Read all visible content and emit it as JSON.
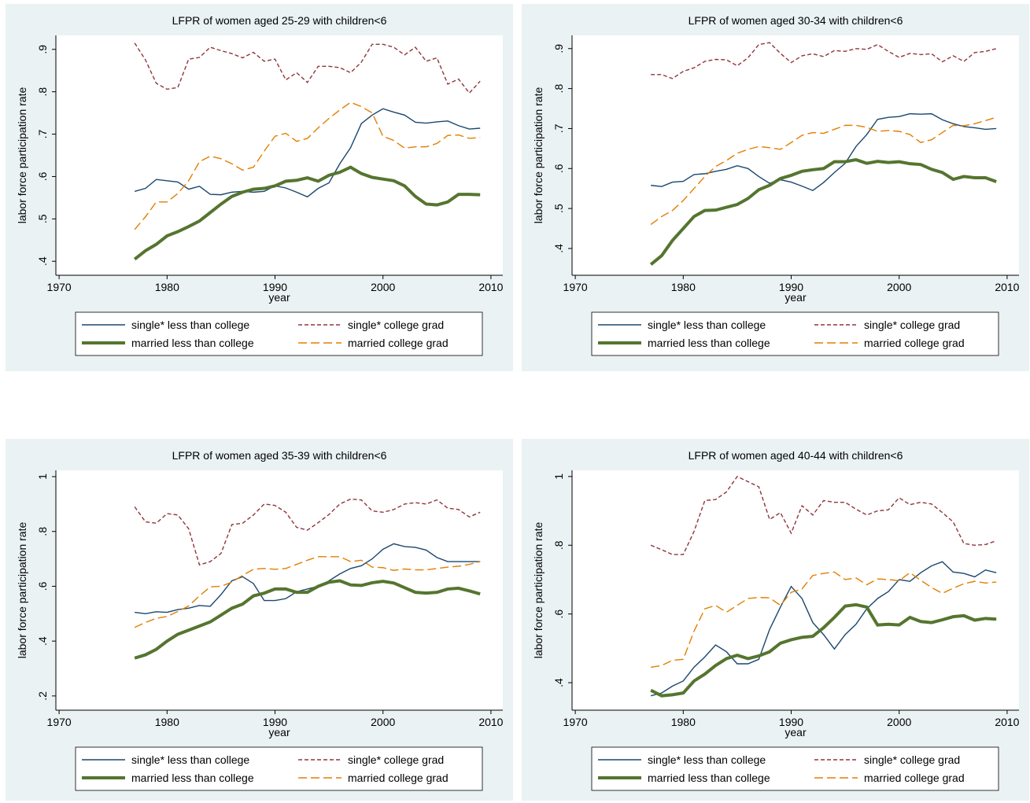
{
  "chart_data": [
    {
      "type": "line",
      "title": "LFPR of women aged 25-29 with children<6",
      "x_label": "year",
      "y_label": "labor force participation rate",
      "x": [
        1977,
        1978,
        1979,
        1980,
        1981,
        1982,
        1983,
        1984,
        1985,
        1986,
        1987,
        1988,
        1989,
        1990,
        1991,
        1992,
        1993,
        1994,
        1995,
        1996,
        1997,
        1998,
        1999,
        2000,
        2001,
        2002,
        2003,
        2004,
        2005,
        2006,
        2007,
        2008,
        2009
      ],
      "xlim": [
        1969.7,
        2011.1
      ],
      "xticks": [
        1970,
        1980,
        1990,
        2000,
        2010
      ],
      "ylim": [
        0.367,
        0.933
      ],
      "yticks": [
        {
          "value": 0.4,
          "label": ".4"
        },
        {
          "value": 0.5,
          "label": ".5"
        },
        {
          "value": 0.6,
          "label": ".6"
        },
        {
          "value": 0.7,
          "label": ".7"
        },
        {
          "value": 0.8,
          "label": ".8"
        },
        {
          "value": 0.9,
          "label": ".9"
        }
      ],
      "legend": "bottom",
      "series": [
        {
          "name": "single* less than college",
          "color": "#1a476f",
          "line_style": "solid",
          "line_width": 1.4,
          "values": [
            0.565,
            0.572,
            0.593,
            0.59,
            0.587,
            0.57,
            0.577,
            0.558,
            0.557,
            0.563,
            0.565,
            0.563,
            0.565,
            0.578,
            0.573,
            0.563,
            0.552,
            0.572,
            0.585,
            0.63,
            0.668,
            0.725,
            0.745,
            0.76,
            0.752,
            0.745,
            0.728,
            0.726,
            0.729,
            0.731,
            0.72,
            0.712,
            0.714
          ]
        },
        {
          "name": "single* college grad",
          "color": "#90353b",
          "line_style": "dash",
          "line_width": 1.4,
          "values": [
            0.915,
            0.875,
            0.82,
            0.806,
            0.81,
            0.877,
            0.881,
            0.905,
            0.897,
            0.89,
            0.88,
            0.893,
            0.872,
            0.877,
            0.828,
            0.845,
            0.822,
            0.86,
            0.86,
            0.857,
            0.845,
            0.87,
            0.912,
            0.912,
            0.905,
            0.887,
            0.905,
            0.872,
            0.88,
            0.818,
            0.83,
            0.797,
            0.825
          ]
        },
        {
          "name": "married less than college",
          "color": "#55752f",
          "line_style": "solid",
          "line_width": 4,
          "values": [
            0.405,
            0.425,
            0.44,
            0.46,
            0.47,
            0.482,
            0.495,
            0.515,
            0.535,
            0.553,
            0.563,
            0.57,
            0.572,
            0.578,
            0.589,
            0.591,
            0.597,
            0.589,
            0.603,
            0.61,
            0.622,
            0.607,
            0.598,
            0.594,
            0.59,
            0.578,
            0.553,
            0.535,
            0.533,
            0.54,
            0.558,
            0.558,
            0.557
          ]
        },
        {
          "name": "married college grad",
          "color": "#e37e00",
          "line_style": "longdash",
          "line_width": 1.4,
          "values": [
            0.475,
            0.505,
            0.54,
            0.54,
            0.56,
            0.59,
            0.635,
            0.648,
            0.642,
            0.63,
            0.615,
            0.622,
            0.66,
            0.695,
            0.702,
            0.683,
            0.69,
            0.715,
            0.737,
            0.757,
            0.775,
            0.765,
            0.75,
            0.695,
            0.685,
            0.667,
            0.67,
            0.67,
            0.678,
            0.697,
            0.698,
            0.69,
            0.692
          ]
        }
      ]
    },
    {
      "type": "line",
      "title": "LFPR of women aged 30-34 with children<6",
      "x_label": "year",
      "y_label": "labor force participation rate",
      "x": [
        1977,
        1978,
        1979,
        1980,
        1981,
        1982,
        1983,
        1984,
        1985,
        1986,
        1987,
        1988,
        1989,
        1990,
        1991,
        1992,
        1993,
        1994,
        1995,
        1996,
        1997,
        1998,
        1999,
        2000,
        2001,
        2002,
        2003,
        2004,
        2005,
        2006,
        2007,
        2008,
        2009
      ],
      "xlim": [
        1969.7,
        2011.1
      ],
      "xticks": [
        1970,
        1980,
        1990,
        2000,
        2010
      ],
      "ylim": [
        0.333,
        0.933
      ],
      "yticks": [
        {
          "value": 0.4,
          "label": ".4"
        },
        {
          "value": 0.5,
          "label": ".5"
        },
        {
          "value": 0.6,
          "label": ".6"
        },
        {
          "value": 0.7,
          "label": ".7"
        },
        {
          "value": 0.8,
          "label": ".8"
        },
        {
          "value": 0.9,
          "label": ".9"
        }
      ],
      "legend": "bottom",
      "series": [
        {
          "name": "single* less than college",
          "color": "#1a476f",
          "line_style": "solid",
          "line_width": 1.4,
          "values": [
            0.558,
            0.555,
            0.566,
            0.568,
            0.585,
            0.587,
            0.593,
            0.598,
            0.607,
            0.6,
            0.58,
            0.563,
            0.572,
            0.566,
            0.556,
            0.545,
            0.565,
            0.59,
            0.613,
            0.655,
            0.685,
            0.723,
            0.728,
            0.73,
            0.737,
            0.736,
            0.737,
            0.722,
            0.712,
            0.705,
            0.702,
            0.698,
            0.7
          ]
        },
        {
          "name": "single* college grad",
          "color": "#90353b",
          "line_style": "dash",
          "line_width": 1.4,
          "values": [
            0.835,
            0.835,
            0.825,
            0.843,
            0.852,
            0.868,
            0.873,
            0.872,
            0.857,
            0.877,
            0.91,
            0.915,
            0.888,
            0.865,
            0.882,
            0.887,
            0.88,
            0.895,
            0.893,
            0.9,
            0.898,
            0.91,
            0.893,
            0.878,
            0.888,
            0.885,
            0.887,
            0.867,
            0.882,
            0.868,
            0.89,
            0.893,
            0.9
          ]
        },
        {
          "name": "married less than college",
          "color": "#55752f",
          "line_style": "solid",
          "line_width": 4,
          "values": [
            0.36,
            0.382,
            0.42,
            0.45,
            0.48,
            0.495,
            0.496,
            0.503,
            0.51,
            0.525,
            0.547,
            0.558,
            0.575,
            0.583,
            0.593,
            0.597,
            0.6,
            0.617,
            0.617,
            0.622,
            0.613,
            0.618,
            0.615,
            0.617,
            0.612,
            0.61,
            0.598,
            0.59,
            0.573,
            0.58,
            0.577,
            0.577,
            0.567
          ]
        },
        {
          "name": "married college grad",
          "color": "#e37e00",
          "line_style": "longdash",
          "line_width": 1.4,
          "values": [
            0.46,
            0.48,
            0.495,
            0.52,
            0.55,
            0.58,
            0.605,
            0.62,
            0.638,
            0.648,
            0.655,
            0.652,
            0.648,
            0.665,
            0.683,
            0.69,
            0.688,
            0.698,
            0.708,
            0.708,
            0.703,
            0.693,
            0.695,
            0.693,
            0.685,
            0.665,
            0.672,
            0.69,
            0.708,
            0.707,
            0.712,
            0.72,
            0.728
          ]
        }
      ]
    },
    {
      "type": "line",
      "title": "LFPR of women aged 35-39 with children<6",
      "x_label": "year",
      "y_label": "labor force participation rate",
      "x": [
        1977,
        1978,
        1979,
        1980,
        1981,
        1982,
        1983,
        1984,
        1985,
        1986,
        1987,
        1988,
        1989,
        1990,
        1991,
        1992,
        1993,
        1994,
        1995,
        1996,
        1997,
        1998,
        1999,
        2000,
        2001,
        2002,
        2003,
        2004,
        2005,
        2006,
        2007,
        2008,
        2009
      ],
      "xlim": [
        1969.7,
        2011.1
      ],
      "xticks": [
        1970,
        1980,
        1990,
        2000,
        2010
      ],
      "ylim": [
        0.148,
        1.023
      ],
      "yticks": [
        {
          "value": 0.2,
          "label": ".2"
        },
        {
          "value": 0.4,
          "label": ".4"
        },
        {
          "value": 0.6,
          "label": ".6"
        },
        {
          "value": 0.8,
          "label": ".8"
        },
        1
      ],
      "legend": "bottom",
      "series": [
        {
          "name": "single* less than college",
          "color": "#1a476f",
          "line_style": "solid",
          "line_width": 1.4,
          "values": [
            0.505,
            0.5,
            0.507,
            0.505,
            0.515,
            0.52,
            0.53,
            0.527,
            0.57,
            0.62,
            0.635,
            0.61,
            0.548,
            0.548,
            0.555,
            0.58,
            0.59,
            0.6,
            0.62,
            0.645,
            0.665,
            0.675,
            0.7,
            0.735,
            0.755,
            0.745,
            0.742,
            0.732,
            0.705,
            0.69,
            0.69,
            0.69,
            0.69
          ]
        },
        {
          "name": "single* college grad",
          "color": "#90353b",
          "line_style": "dash",
          "line_width": 1.4,
          "values": [
            0.89,
            0.835,
            0.83,
            0.865,
            0.86,
            0.81,
            0.678,
            0.69,
            0.72,
            0.825,
            0.83,
            0.86,
            0.9,
            0.895,
            0.87,
            0.815,
            0.805,
            0.832,
            0.862,
            0.9,
            0.918,
            0.915,
            0.875,
            0.87,
            0.88,
            0.9,
            0.905,
            0.9,
            0.915,
            0.885,
            0.88,
            0.853,
            0.87
          ]
        },
        {
          "name": "married less than college",
          "color": "#55752f",
          "line_style": "solid",
          "line_width": 4,
          "values": [
            0.338,
            0.35,
            0.37,
            0.4,
            0.425,
            0.44,
            0.455,
            0.47,
            0.495,
            0.52,
            0.535,
            0.565,
            0.575,
            0.59,
            0.59,
            0.578,
            0.578,
            0.6,
            0.615,
            0.62,
            0.605,
            0.603,
            0.613,
            0.618,
            0.612,
            0.595,
            0.578,
            0.575,
            0.578,
            0.59,
            0.593,
            0.583,
            0.572
          ]
        },
        {
          "name": "married college grad",
          "color": "#e37e00",
          "line_style": "longdash",
          "line_width": 1.4,
          "values": [
            0.45,
            0.468,
            0.483,
            0.49,
            0.508,
            0.528,
            0.565,
            0.598,
            0.6,
            0.615,
            0.64,
            0.662,
            0.665,
            0.662,
            0.665,
            0.68,
            0.695,
            0.708,
            0.708,
            0.708,
            0.69,
            0.695,
            0.67,
            0.668,
            0.658,
            0.663,
            0.66,
            0.66,
            0.665,
            0.67,
            0.673,
            0.68,
            0.69
          ]
        }
      ]
    },
    {
      "type": "line",
      "title": "LFPR of women aged 40-44 with children<6",
      "x_label": "year",
      "y_label": "labor force participation rate",
      "x": [
        1977,
        1978,
        1979,
        1980,
        1981,
        1982,
        1983,
        1984,
        1985,
        1986,
        1987,
        1988,
        1989,
        1990,
        1991,
        1992,
        1993,
        1994,
        1995,
        1996,
        1997,
        1998,
        1999,
        2000,
        2001,
        2002,
        2003,
        2004,
        2005,
        2006,
        2007,
        2008,
        2009
      ],
      "xlim": [
        1969.7,
        2011.1
      ],
      "xticks": [
        1970,
        1980,
        1990,
        2000,
        2010
      ],
      "ylim": [
        0.32,
        1.018
      ],
      "yticks": [
        {
          "value": 0.4,
          "label": ".4"
        },
        {
          "value": 0.6,
          "label": ".6"
        },
        {
          "value": 0.8,
          "label": ".8"
        },
        1
      ],
      "legend": "bottom",
      "series": [
        {
          "name": "single* less than college",
          "color": "#1a476f",
          "line_style": "solid",
          "line_width": 1.4,
          "values": [
            0.362,
            0.37,
            0.39,
            0.405,
            0.445,
            0.475,
            0.51,
            0.49,
            0.455,
            0.455,
            0.468,
            0.555,
            0.62,
            0.68,
            0.645,
            0.575,
            0.54,
            0.498,
            0.54,
            0.57,
            0.615,
            0.645,
            0.665,
            0.7,
            0.695,
            0.72,
            0.74,
            0.752,
            0.722,
            0.718,
            0.708,
            0.728,
            0.72
          ]
        },
        {
          "name": "single* college grad",
          "color": "#90353b",
          "line_style": "dash",
          "line_width": 1.4,
          "values": [
            0.8,
            0.787,
            0.773,
            0.773,
            0.84,
            0.93,
            0.933,
            0.955,
            1.0,
            0.985,
            0.97,
            0.875,
            0.895,
            0.835,
            0.915,
            0.888,
            0.93,
            0.925,
            0.925,
            0.905,
            0.888,
            0.9,
            0.903,
            0.938,
            0.918,
            0.925,
            0.92,
            0.895,
            0.868,
            0.805,
            0.8,
            0.802,
            0.813
          ]
        },
        {
          "name": "married less than college",
          "color": "#55752f",
          "line_style": "solid",
          "line_width": 4,
          "values": [
            0.378,
            0.362,
            0.365,
            0.37,
            0.405,
            0.425,
            0.45,
            0.47,
            0.48,
            0.47,
            0.478,
            0.49,
            0.515,
            0.525,
            0.532,
            0.535,
            0.56,
            0.59,
            0.623,
            0.627,
            0.62,
            0.568,
            0.57,
            0.568,
            0.59,
            0.578,
            0.575,
            0.583,
            0.592,
            0.595,
            0.582,
            0.587,
            0.585
          ]
        },
        {
          "name": "married college grad",
          "color": "#e37e00",
          "line_style": "longdash",
          "line_width": 1.4,
          "values": [
            0.445,
            0.45,
            0.465,
            0.468,
            0.55,
            0.615,
            0.625,
            0.605,
            0.625,
            0.645,
            0.648,
            0.647,
            0.625,
            0.663,
            0.673,
            0.712,
            0.718,
            0.722,
            0.7,
            0.705,
            0.685,
            0.702,
            0.7,
            0.697,
            0.72,
            0.698,
            0.677,
            0.66,
            0.675,
            0.688,
            0.695,
            0.69,
            0.693
          ]
        }
      ]
    }
  ]
}
